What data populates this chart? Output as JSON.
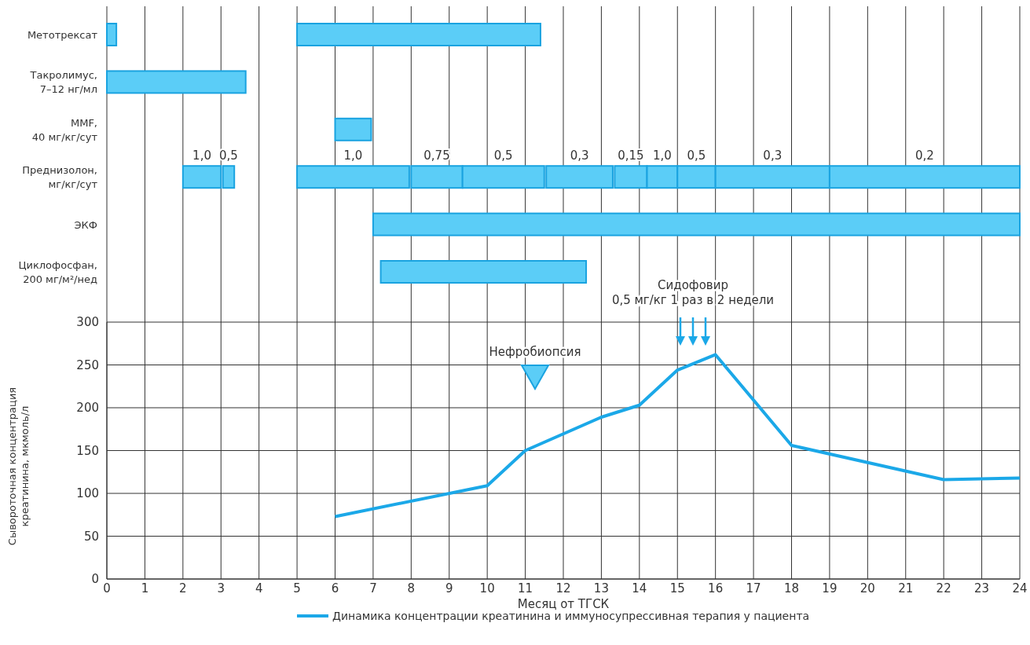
{
  "chart_data": [
    {
      "type": "bar",
      "orientation": "horizontal",
      "categories": [
        "Метотрексат",
        "Такролимус,\n7–12 нг/мл",
        "MMF,\n40 мг/кг/сут",
        "Преднизолон,\nмг/кг/сут",
        "ЭКФ",
        "Циклофосфан,\n200 мг/м²/нед"
      ],
      "series": [
        {
          "color": "#5bcdf7",
          "base": [
            0,
            0,
            6,
            2,
            7,
            7.2
          ],
          "values": [
            0.25,
            3.65,
            0.95,
            1,
            17,
            5.4
          ]
        },
        {
          "color": "#5bcdf7",
          "base": [
            5,
            null,
            null,
            3.05,
            null,
            null
          ],
          "values": [
            6.4,
            null,
            null,
            0.3,
            null,
            null
          ]
        },
        {
          "color": "#5bcdf7",
          "base": [
            null,
            null,
            null,
            5,
            null,
            null
          ],
          "values": [
            null,
            null,
            null,
            2.95,
            null,
            null
          ]
        },
        {
          "color": "#5bcdf7",
          "base": [
            null,
            null,
            null,
            8,
            null,
            null
          ],
          "values": [
            null,
            null,
            null,
            1.35,
            null,
            null
          ]
        },
        {
          "color": "#5bcdf7",
          "base": [
            null,
            null,
            null,
            9.35,
            null,
            null
          ],
          "values": [
            null,
            null,
            null,
            2.15,
            null,
            null
          ]
        },
        {
          "color": "#5bcdf7",
          "base": [
            null,
            null,
            null,
            11.55,
            null,
            null
          ],
          "values": [
            null,
            null,
            null,
            1.75,
            null,
            null
          ]
        },
        {
          "color": "#5bcdf7",
          "base": [
            null,
            null,
            null,
            13.35,
            null,
            null
          ],
          "values": [
            null,
            null,
            null,
            0.85,
            null,
            null
          ]
        },
        {
          "color": "#5bcdf7",
          "base": [
            null,
            null,
            null,
            14.2,
            null,
            null
          ],
          "values": [
            null,
            null,
            null,
            0.8,
            null,
            null
          ]
        },
        {
          "color": "#5bcdf7",
          "base": [
            null,
            null,
            null,
            15,
            null,
            null
          ],
          "values": [
            null,
            null,
            null,
            1,
            null,
            null
          ]
        },
        {
          "color": "#5bcdf7",
          "base": [
            null,
            null,
            null,
            16,
            null,
            null
          ],
          "values": [
            null,
            null,
            null,
            3,
            null,
            null
          ]
        },
        {
          "color": "#5bcdf7",
          "base": [
            null,
            null,
            null,
            19,
            null,
            null
          ],
          "values": [
            null,
            null,
            null,
            5,
            null,
            null
          ]
        }
      ],
      "annotations": [
        "1,0",
        "0,5",
        "1,0",
        "0,75",
        "0,5",
        "0,3",
        "0,15",
        "1,0",
        "0,5",
        "0,3",
        "0,2"
      ],
      "xlim": [
        0,
        24
      ],
      "xticks": [
        0,
        1,
        2,
        3,
        4,
        5,
        6,
        7,
        8,
        9,
        10,
        11,
        12,
        13,
        14,
        15,
        16,
        17,
        18,
        19,
        20,
        21,
        22,
        23,
        24
      ],
      "grid": "x",
      "tick_labels": "y"
    },
    {
      "type": "line",
      "x": [
        6,
        10,
        11,
        13,
        14,
        15,
        16,
        18,
        22,
        24
      ],
      "series": [
        {
          "name": "Динамика концентрации креатинина и иммуносупрессивная терапия у пациента",
          "color": "#1ba8e8",
          "values": [
            73,
            109,
            150,
            189,
            203,
            244,
            262,
            156,
            116,
            118
          ]
        }
      ],
      "xlim": [
        0,
        24
      ],
      "xticks": [
        0,
        1,
        2,
        3,
        4,
        5,
        6,
        7,
        8,
        9,
        10,
        11,
        12,
        13,
        14,
        15,
        16,
        17,
        18,
        19,
        20,
        21,
        22,
        23,
        24
      ],
      "ylim": [
        0,
        300
      ],
      "yticks": [
        0,
        50,
        100,
        150,
        200,
        250,
        300
      ],
      "xlabel": "Месяц от ТГСК",
      "ylabel": "Сывороточная концентрация\nкреатинина, мкмоль/л",
      "annotations": [
        "Нефробиопсия",
        "Сидофовир\n0,5 мг/кг 1 раз в 2 недели"
      ],
      "grid": true,
      "legend": "bottom",
      "marker": "none",
      "line_style": "solid"
    }
  ]
}
